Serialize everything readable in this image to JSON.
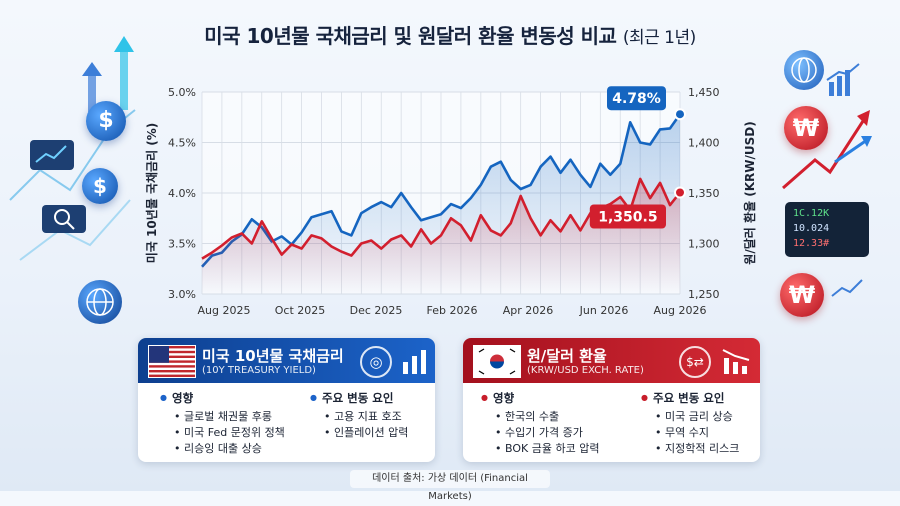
{
  "title": {
    "main": "미국 10년물 국채금리 및 원달러 환율 변동성 비교",
    "sub": "(최근 1년)"
  },
  "colors": {
    "us": "#1565c0",
    "kr": "#d21f2e",
    "grid": "#d7dde6"
  },
  "chart_data": {
    "type": "line",
    "xlabel": "",
    "ylabel_left": "미국 10년물 국채금리 (%)",
    "ylabel_right": "원/달러 환율 (KRW/USD)",
    "x_ticks": [
      "Aug 2025",
      "Oct 2025",
      "Dec 2025",
      "Feb 2026",
      "Apr 2026",
      "Jun 2026",
      "Aug 2026"
    ],
    "y_left_ticks": [
      "3.0%",
      "3.5%",
      "4.0%",
      "4.5%",
      "5.0%"
    ],
    "y_left_lim": [
      3.0,
      5.0
    ],
    "y_right_ticks": [
      "1,250",
      "1,300",
      "1,350",
      "1,400",
      "1,450"
    ],
    "y_right_lim": [
      1250,
      1450
    ],
    "x_range": [
      0,
      12
    ],
    "grid": true,
    "series": [
      {
        "axis": "left",
        "color": "#1565c0",
        "end_label": "4.78%",
        "x": [
          0,
          0.25,
          0.5,
          0.75,
          1,
          1.25,
          1.5,
          1.75,
          2,
          2.25,
          2.5,
          2.75,
          3,
          3.25,
          3.5,
          3.75,
          4,
          4.25,
          4.5,
          4.75,
          5,
          5.25,
          5.5,
          5.75,
          6,
          6.25,
          6.5,
          6.75,
          7,
          7.25,
          7.5,
          7.75,
          8,
          8.25,
          8.5,
          8.75,
          9,
          9.25,
          9.5,
          9.75,
          10,
          10.25,
          10.5,
          10.75,
          11,
          11.25,
          11.5,
          11.75,
          12
        ],
        "values": [
          3.27,
          3.38,
          3.41,
          3.52,
          3.59,
          3.74,
          3.66,
          3.52,
          3.57,
          3.49,
          3.61,
          3.76,
          3.79,
          3.82,
          3.62,
          3.58,
          3.8,
          3.86,
          3.91,
          3.86,
          4.0,
          3.86,
          3.73,
          3.76,
          3.79,
          3.89,
          3.85,
          3.95,
          4.08,
          4.26,
          4.31,
          4.13,
          4.04,
          4.08,
          4.26,
          4.36,
          4.2,
          4.33,
          4.18,
          4.06,
          4.29,
          4.18,
          4.29,
          4.7,
          4.5,
          4.48,
          4.63,
          4.64,
          4.78
        ]
      },
      {
        "axis": "right",
        "color": "#d21f2e",
        "end_label": "1,350.5",
        "x": [
          0,
          0.25,
          0.5,
          0.75,
          1,
          1.25,
          1.5,
          1.75,
          2,
          2.25,
          2.5,
          2.75,
          3,
          3.25,
          3.5,
          3.75,
          4,
          4.25,
          4.5,
          4.75,
          5,
          5.25,
          5.5,
          5.75,
          6,
          6.25,
          6.5,
          6.75,
          7,
          7.25,
          7.5,
          7.75,
          8,
          8.25,
          8.5,
          8.75,
          9,
          9.25,
          9.5,
          9.75,
          10,
          10.25,
          10.5,
          10.75,
          11,
          11.25,
          11.5,
          11.75,
          12
        ],
        "values": [
          1285,
          1291,
          1298,
          1306,
          1310,
          1300,
          1322,
          1305,
          1289,
          1299,
          1295,
          1308,
          1305,
          1297,
          1292,
          1288,
          1300,
          1303,
          1295,
          1304,
          1308,
          1297,
          1314,
          1300,
          1308,
          1325,
          1318,
          1303,
          1328,
          1313,
          1308,
          1320,
          1347,
          1325,
          1308,
          1323,
          1312,
          1328,
          1313,
          1330,
          1335,
          1339,
          1346,
          1333,
          1364,
          1345,
          1360,
          1338,
          1350.5
        ]
      }
    ]
  },
  "cards": {
    "us": {
      "name": "미국 10년물 국채금리",
      "eng": "(10Y TREASURY YIELD)",
      "left_title": "영향",
      "left_items": [
        "글로벌 채권물 후롱",
        "미국 Fed 문정위 정책",
        "리승잉 대출 상승"
      ],
      "right_title": "주요 변동 요인",
      "right_items": [
        "고용 지표 호조",
        "인플레이션 압력"
      ]
    },
    "kr": {
      "name": "원/달러 환율",
      "eng": "(KRW/USD EXCH. RATE)",
      "left_title": "영향",
      "left_items": [
        "한국의 수출",
        "수입기 가격 증가",
        "BOK 금율 하코 압력"
      ],
      "right_title": "주요 변동 요인",
      "right_items": [
        "미국 금리 상승",
        "무역 수지",
        "지정학적 리스크"
      ]
    }
  },
  "ticker": [
    "1C.12K",
    "10.024",
    "12.33#"
  ],
  "footer": "데이터 출처: 가상 데이터 (Financial Markets)",
  "icons": {
    "left": [
      "dollar-coin-icon",
      "chart-card-icon",
      "magnifier-icon",
      "globe-icon"
    ],
    "right": [
      "globe-icon",
      "won-coin-icon",
      "won-coin-icon",
      "trend-arrow-icon"
    ]
  }
}
